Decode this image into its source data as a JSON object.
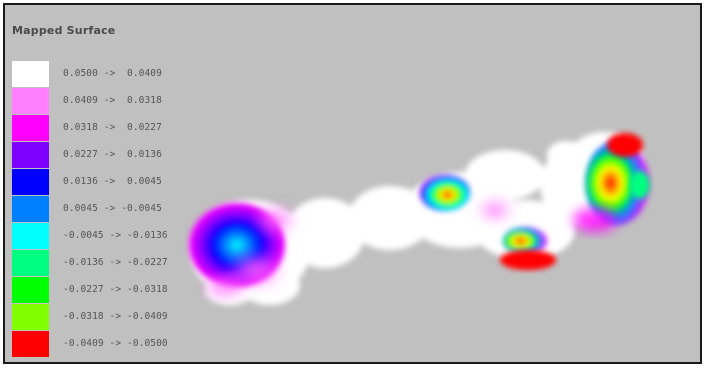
{
  "panel": {
    "title": "Mapped Surface"
  },
  "legend": [
    {
      "label": "0.0500 ->  0.0409",
      "color": "#ffffff"
    },
    {
      "label": "0.0409 ->  0.0318",
      "color": "#ff7fff"
    },
    {
      "label": "0.0318 ->  0.0227",
      "color": "#ff00ff"
    },
    {
      "label": "0.0227 ->  0.0136",
      "color": "#8000ff"
    },
    {
      "label": "0.0136 ->  0.0045",
      "color": "#0000ff"
    },
    {
      "label": "0.0045 -> -0.0045",
      "color": "#0080ff"
    },
    {
      "label": "-0.0045 -> -0.0136",
      "color": "#00ffff"
    },
    {
      "label": "-0.0136 -> -0.0227",
      "color": "#00ff80"
    },
    {
      "label": "-0.0227 -> -0.0318",
      "color": "#00ff00"
    },
    {
      "label": "-0.0318 -> -0.0409",
      "color": "#80ff00"
    },
    {
      "label": "-0.0409 -> -0.0500",
      "color": "#ff0000"
    }
  ],
  "surface": {
    "description_color_background": "#c0c0c0"
  }
}
